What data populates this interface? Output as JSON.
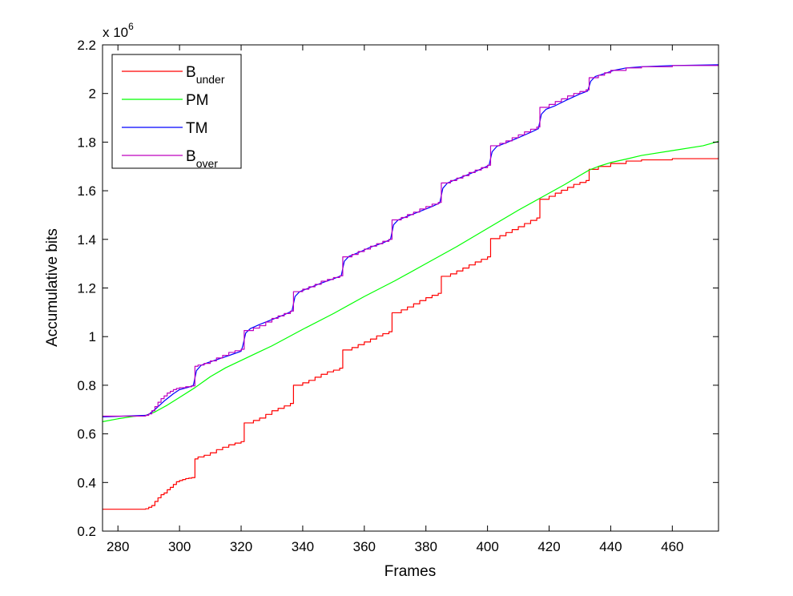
{
  "chart_data": {
    "type": "line",
    "title": "",
    "xlabel": "Frames",
    "ylabel": "Accumulative bits",
    "y_multiplier": {
      "base": "x 10",
      "exponent": "6"
    },
    "xlim": [
      275,
      475
    ],
    "ylim": [
      200000,
      2200000
    ],
    "x_ticks": [
      280,
      300,
      320,
      340,
      360,
      380,
      400,
      420,
      440,
      460
    ],
    "x_tick_labels": [
      "280",
      "300",
      "320",
      "340",
      "360",
      "380",
      "400",
      "420",
      "440",
      "460"
    ],
    "y_ticks": [
      200000,
      400000,
      600000,
      800000,
      1000000,
      1200000,
      1400000,
      1600000,
      1800000,
      2000000,
      2200000
    ],
    "y_tick_labels": [
      "0.2",
      "0.4",
      "0.6",
      "0.8",
      "1",
      "1.2",
      "1.4",
      "1.6",
      "1.8",
      "2",
      "2.2"
    ],
    "grid": false,
    "legend_position": "top-left",
    "legend": [
      {
        "main": "B",
        "sub": "under",
        "color": "#ff0000"
      },
      {
        "main": "PM",
        "sub": "",
        "color": "#00ff00"
      },
      {
        "main": "TM",
        "sub": "",
        "color": "#0000ff"
      },
      {
        "main": "B",
        "sub": "over",
        "color": "#bf00bf"
      }
    ],
    "series": [
      {
        "name": "B under",
        "color": "#ff0000",
        "step": true,
        "x": [
          275,
          289,
          290,
          291,
          292,
          293,
          294,
          295,
          296,
          297,
          298,
          299,
          300,
          301,
          302,
          303,
          304,
          305,
          306,
          308,
          310,
          312,
          314,
          316,
          318,
          320,
          321,
          324,
          326,
          328,
          330,
          332,
          334,
          336,
          337,
          340,
          342,
          344,
          346,
          348,
          350,
          352,
          353,
          356,
          358,
          360,
          362,
          364,
          366,
          368,
          369,
          372,
          374,
          376,
          378,
          380,
          382,
          384,
          385,
          388,
          390,
          392,
          394,
          396,
          398,
          400,
          401,
          404,
          406,
          408,
          410,
          412,
          414,
          416,
          417,
          420,
          422,
          424,
          426,
          428,
          430,
          432,
          433,
          436,
          440,
          445,
          450,
          460,
          475
        ],
        "values": [
          290000,
          292000,
          298000,
          305000,
          322000,
          337000,
          350000,
          357000,
          370000,
          380000,
          392000,
          403000,
          408000,
          412000,
          416000,
          418000,
          420000,
          497000,
          505000,
          512000,
          522000,
          535000,
          545000,
          555000,
          562000,
          568000,
          645000,
          655000,
          665000,
          680000,
          695000,
          705000,
          715000,
          725000,
          800000,
          810000,
          820000,
          833000,
          845000,
          855000,
          862000,
          870000,
          945000,
          955000,
          967000,
          978000,
          990000,
          1003000,
          1012000,
          1020000,
          1098000,
          1110000,
          1122000,
          1135000,
          1148000,
          1160000,
          1170000,
          1178000,
          1248000,
          1258000,
          1270000,
          1282000,
          1295000,
          1307000,
          1318000,
          1328000,
          1403000,
          1415000,
          1428000,
          1440000,
          1452000,
          1465000,
          1478000,
          1488000,
          1565000,
          1577000,
          1590000,
          1602000,
          1614000,
          1626000,
          1634000,
          1642000,
          1688000,
          1700000,
          1712000,
          1722000,
          1727000,
          1732000,
          1737000
        ]
      },
      {
        "name": "PM",
        "color": "#00ff00",
        "step": false,
        "x": [
          275,
          280,
          285,
          289,
          292,
          296,
          300,
          305,
          310,
          315,
          320,
          325,
          330,
          340,
          350,
          360,
          370,
          380,
          390,
          400,
          410,
          420,
          425,
          430,
          433,
          436,
          440,
          445,
          450,
          460,
          470,
          475
        ],
        "values": [
          650000,
          662000,
          672000,
          676000,
          690000,
          718000,
          750000,
          790000,
          835000,
          872000,
          902000,
          932000,
          962000,
          1030000,
          1095000,
          1165000,
          1230000,
          1300000,
          1370000,
          1445000,
          1520000,
          1590000,
          1625000,
          1663000,
          1685000,
          1700000,
          1716000,
          1730000,
          1745000,
          1765000,
          1785000,
          1803000
        ]
      },
      {
        "name": "TM",
        "color": "#0000ff",
        "step": false,
        "x": [
          275,
          289,
          290,
          292,
          295,
          298,
          300,
          303,
          304.5,
          305.5,
          307,
          309,
          312,
          316,
          320,
          320.5,
          321.5,
          323,
          326,
          330,
          334,
          336.5,
          337.5,
          339,
          342,
          346,
          350,
          352.5,
          353.5,
          355,
          358,
          362,
          366,
          368.5,
          369.5,
          371,
          374,
          378,
          382,
          384.5,
          385.5,
          387,
          390,
          394,
          398,
          400.5,
          401.5,
          403,
          406,
          410,
          414,
          416.5,
          417.5,
          419,
          422,
          426,
          430,
          432.5,
          433.5,
          435,
          438,
          441,
          445,
          450,
          460,
          475
        ],
        "values": [
          670000,
          676000,
          680000,
          700000,
          735000,
          765000,
          782000,
          792000,
          800000,
          860000,
          882000,
          892000,
          905000,
          922000,
          940000,
          960000,
          1015000,
          1033000,
          1050000,
          1070000,
          1090000,
          1105000,
          1165000,
          1185000,
          1200000,
          1220000,
          1238000,
          1250000,
          1310000,
          1330000,
          1345000,
          1368000,
          1385000,
          1400000,
          1460000,
          1480000,
          1495000,
          1515000,
          1535000,
          1550000,
          1610000,
          1632000,
          1648000,
          1668000,
          1690000,
          1705000,
          1760000,
          1782000,
          1797000,
          1818000,
          1840000,
          1855000,
          1915000,
          1935000,
          1950000,
          1975000,
          1998000,
          2010000,
          2050000,
          2070000,
          2082000,
          2095000,
          2105000,
          2110000,
          2115000,
          2118000
        ]
      },
      {
        "name": "B over",
        "color": "#bf00bf",
        "step": true,
        "x": [
          275,
          289,
          290,
          291,
          292,
          293,
          294,
          295,
          296,
          297,
          298,
          299,
          300,
          302,
          304,
          305,
          306,
          308,
          310,
          312,
          314,
          316,
          318,
          320,
          321,
          324,
          326,
          328,
          330,
          332,
          334,
          336,
          337,
          340,
          342,
          344,
          346,
          348,
          350,
          352,
          353,
          356,
          358,
          360,
          362,
          364,
          366,
          368,
          369,
          372,
          374,
          376,
          378,
          380,
          382,
          384,
          385,
          388,
          390,
          392,
          394,
          396,
          398,
          400,
          401,
          404,
          406,
          408,
          410,
          412,
          414,
          416,
          417,
          420,
          422,
          424,
          426,
          428,
          430,
          432,
          433,
          436,
          438,
          440,
          445,
          450,
          460,
          475
        ],
        "values": [
          673000,
          676000,
          682000,
          695000,
          712000,
          730000,
          745000,
          756000,
          768000,
          775000,
          782000,
          787000,
          790000,
          794000,
          797000,
          878000,
          883000,
          890000,
          900000,
          912000,
          923000,
          935000,
          942000,
          948000,
          1025000,
          1035000,
          1045000,
          1060000,
          1075000,
          1085000,
          1095000,
          1105000,
          1185000,
          1195000,
          1205000,
          1215000,
          1228000,
          1235000,
          1243000,
          1250000,
          1328000,
          1338000,
          1350000,
          1360000,
          1372000,
          1382000,
          1392000,
          1400000,
          1480000,
          1490000,
          1502000,
          1512000,
          1525000,
          1535000,
          1545000,
          1552000,
          1632000,
          1642000,
          1652000,
          1662000,
          1675000,
          1685000,
          1695000,
          1705000,
          1785000,
          1795000,
          1805000,
          1818000,
          1830000,
          1842000,
          1853000,
          1862000,
          1943000,
          1955000,
          1967000,
          1978000,
          1990000,
          2000000,
          2008000,
          2015000,
          2065000,
          2075000,
          2085000,
          2095000,
          2105000,
          2110000,
          2115000,
          2118000
        ]
      }
    ]
  }
}
